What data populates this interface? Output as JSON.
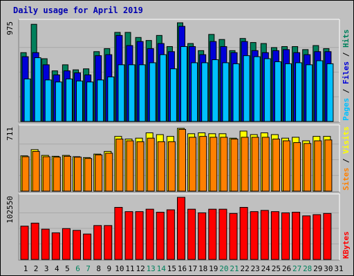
{
  "title": "Daily usage for April 2019",
  "colors": {
    "background": "#c0c0c0",
    "hits": "#00805c",
    "files": "#0000d8",
    "pages": "#00c0ff",
    "visits": "#ffff00",
    "sites": "#ff8000",
    "kbytes": "#ff0000",
    "title": "#0000b0",
    "weekend_day": "#00805c",
    "weekday": "#000000"
  },
  "chart_data": {
    "type": "bar",
    "x": {
      "labels": [
        "1",
        "2",
        "3",
        "4",
        "5",
        "6",
        "7",
        "8",
        "9",
        "10",
        "11",
        "12",
        "13",
        "14",
        "15",
        "16",
        "17",
        "18",
        "19",
        "20",
        "21",
        "22",
        "23",
        "24",
        "25",
        "26",
        "27",
        "28",
        "29",
        "30",
        "31"
      ],
      "weekend_days": [
        "6",
        "7",
        "13",
        "14",
        "20",
        "21",
        "27",
        "28"
      ]
    },
    "panels": [
      {
        "id": "hits_files_pages",
        "max_label": "975",
        "ylim": [
          0,
          975
        ],
        "vertical_legend": [
          {
            "text": "Pages",
            "color": "#00c0ff"
          },
          {
            "text": " / ",
            "color": "#000000"
          },
          {
            "text": "Files",
            "color": "#0000d8"
          },
          {
            "text": " / ",
            "color": "#000000"
          },
          {
            "text": "Hits",
            "color": "#00805c"
          }
        ],
        "series": [
          {
            "name": "Hits",
            "color": "#00805c",
            "values": [
              680,
              960,
              620,
              500,
              560,
              510,
              520,
              690,
              720,
              880,
              880,
              830,
              800,
              850,
              740,
              975,
              770,
              700,
              860,
              810,
              700,
              820,
              780,
              770,
              730,
              740,
              740,
              710,
              750,
              720,
              0
            ]
          },
          {
            "name": "Files",
            "color": "#0000d8",
            "values": [
              640,
              680,
              560,
              460,
              500,
              480,
              460,
              650,
              660,
              850,
              750,
              790,
              720,
              770,
              690,
              940,
              740,
              660,
              790,
              740,
              680,
              790,
              700,
              680,
              700,
              710,
              680,
              660,
              690,
              690,
              0
            ]
          },
          {
            "name": "Pages",
            "color": "#00c0ff",
            "values": [
              420,
              630,
              410,
              390,
              420,
              400,
              390,
              410,
              440,
              560,
              560,
              560,
              580,
              660,
              520,
              740,
              580,
              580,
              610,
              580,
              570,
              650,
              640,
              620,
              590,
              570,
              580,
              560,
              600,
              570,
              0
            ]
          }
        ]
      },
      {
        "id": "visits_sites",
        "max_label": "711",
        "ylim": [
          0,
          711
        ],
        "vertical_legend": [
          {
            "text": "Sites",
            "color": "#ff8000"
          },
          {
            "text": " / ",
            "color": "#000000"
          },
          {
            "text": "Visits",
            "color": "#ffff00"
          }
        ],
        "series": [
          {
            "name": "Visits",
            "color": "#ffff00",
            "values": [
              400,
              470,
              405,
              395,
              405,
              390,
              380,
              420,
              450,
              620,
              590,
              600,
              660,
              640,
              620,
              711,
              650,
              660,
              650,
              650,
              600,
              680,
              640,
              660,
              640,
              600,
              610,
              570,
              620,
              620,
              0
            ]
          },
          {
            "name": "Sites",
            "color": "#ff8000",
            "values": [
              390,
              450,
              390,
              385,
              395,
              385,
              370,
              410,
              430,
              590,
              570,
              560,
              600,
              560,
              560,
              700,
              610,
              620,
              610,
              610,
              590,
              610,
              610,
              610,
              590,
              570,
              550,
              540,
              570,
              580,
              0
            ]
          }
        ]
      },
      {
        "id": "kbytes",
        "max_label": "102550",
        "ylim": [
          0,
          102550
        ],
        "vertical_legend": [
          {
            "text": "KBytes",
            "color": "#ff0000"
          }
        ],
        "series": [
          {
            "name": "KBytes",
            "color": "#ff0000",
            "values": [
              55000,
              60000,
              50000,
              44000,
              51000,
              48000,
              42000,
              56000,
              56000,
              86000,
              79000,
              79000,
              83000,
              78000,
              82000,
              102550,
              83000,
              77000,
              83000,
              83000,
              76000,
              86000,
              79000,
              81000,
              79000,
              77000,
              78000,
              72000,
              74000,
              76000,
              0
            ]
          }
        ]
      }
    ]
  }
}
